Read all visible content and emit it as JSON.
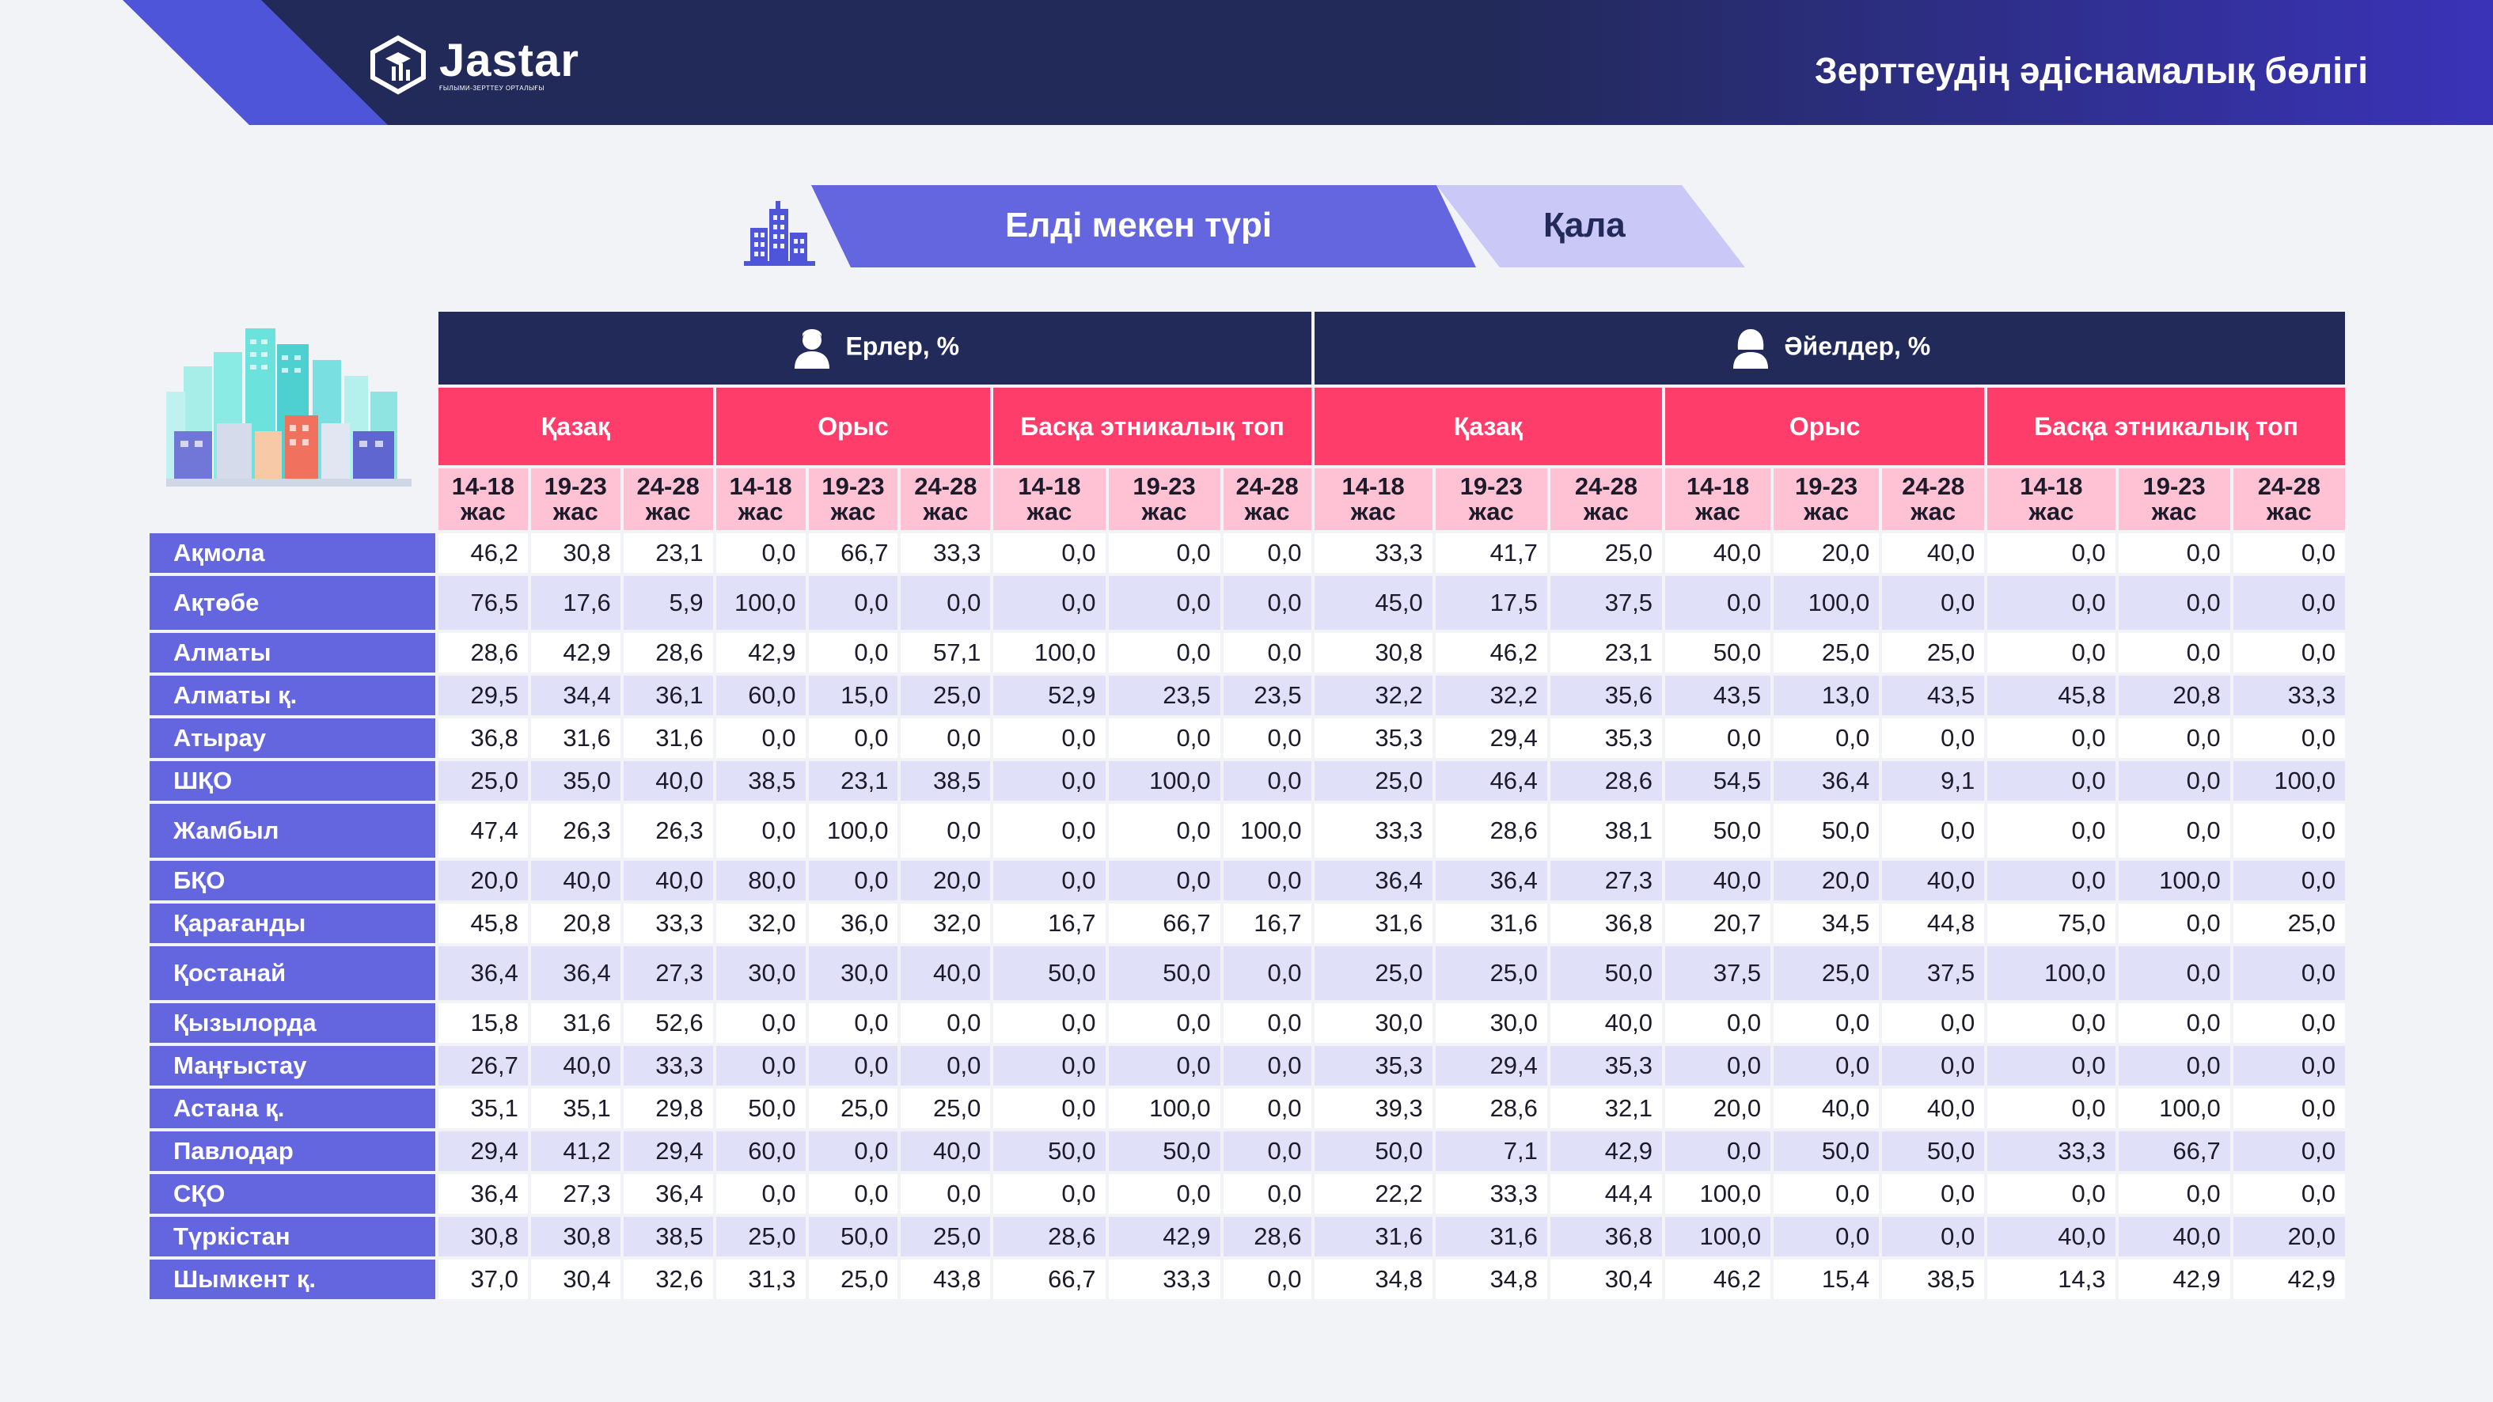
{
  "header": {
    "logo_name": "Jastar",
    "logo_sub": "ҒЫЛЫМИ-ЗЕРТТЕУ ОРТАЛЫҒЫ",
    "title": "Зерттеудің әдіснамалық бөлігі"
  },
  "banner": {
    "label": "Елді мекен түрі",
    "value": "Қала"
  },
  "table": {
    "genders": [
      "Ерлер, %",
      "Әйелдер, %"
    ],
    "groups": [
      "Қазақ",
      "Орыс",
      "Басқа этникалық топ",
      "Қазақ",
      "Орыс",
      "Басқа этникалық топ"
    ],
    "ages": [
      [
        "14-18",
        "жас"
      ],
      [
        "19-23",
        "жас"
      ],
      [
        "24-28",
        "жас"
      ],
      [
        "14-18",
        "жас"
      ],
      [
        "19-23",
        "жас"
      ],
      [
        "24-28",
        "жас"
      ],
      [
        "14-18",
        "жас"
      ],
      [
        "19-23",
        "жас"
      ],
      [
        "24-28",
        "жас"
      ],
      [
        "14-18",
        "жас"
      ],
      [
        "19-23",
        "жас"
      ],
      [
        "24-28",
        "жас"
      ],
      [
        "14-18",
        "жас"
      ],
      [
        "19-23",
        "жас"
      ],
      [
        "24-28",
        "жас"
      ],
      [
        "14-18",
        "жас"
      ],
      [
        "19-23",
        "жас"
      ],
      [
        "24-28",
        "жас"
      ]
    ],
    "rows": [
      {
        "region": "Ақмола",
        "values": [
          "46,2",
          "30,8",
          "23,1",
          "0,0",
          "66,7",
          "33,3",
          "0,0",
          "0,0",
          "0,0",
          "33,3",
          "41,7",
          "25,0",
          "40,0",
          "20,0",
          "40,0",
          "0,0",
          "0,0",
          "0,0"
        ]
      },
      {
        "region": "Ақтөбе",
        "values": [
          "76,5",
          "17,6",
          "5,9",
          "100,0",
          "0,0",
          "0,0",
          "0,0",
          "0,0",
          "0,0",
          "45,0",
          "17,5",
          "37,5",
          "0,0",
          "100,0",
          "0,0",
          "0,0",
          "0,0",
          "0,0"
        ]
      },
      {
        "region": "Алматы",
        "values": [
          "28,6",
          "42,9",
          "28,6",
          "42,9",
          "0,0",
          "57,1",
          "100,0",
          "0,0",
          "0,0",
          "30,8",
          "46,2",
          "23,1",
          "50,0",
          "25,0",
          "25,0",
          "0,0",
          "0,0",
          "0,0"
        ]
      },
      {
        "region": "Алматы қ.",
        "values": [
          "29,5",
          "34,4",
          "36,1",
          "60,0",
          "15,0",
          "25,0",
          "52,9",
          "23,5",
          "23,5",
          "32,2",
          "32,2",
          "35,6",
          "43,5",
          "13,0",
          "43,5",
          "45,8",
          "20,8",
          "33,3"
        ]
      },
      {
        "region": "Атырау",
        "values": [
          "36,8",
          "31,6",
          "31,6",
          "0,0",
          "0,0",
          "0,0",
          "0,0",
          "0,0",
          "0,0",
          "35,3",
          "29,4",
          "35,3",
          "0,0",
          "0,0",
          "0,0",
          "0,0",
          "0,0",
          "0,0"
        ]
      },
      {
        "region": "ШҚО",
        "values": [
          "25,0",
          "35,0",
          "40,0",
          "38,5",
          "23,1",
          "38,5",
          "0,0",
          "100,0",
          "0,0",
          "25,0",
          "46,4",
          "28,6",
          "54,5",
          "36,4",
          "9,1",
          "0,0",
          "0,0",
          "100,0"
        ]
      },
      {
        "region": "Жамбыл",
        "values": [
          "47,4",
          "26,3",
          "26,3",
          "0,0",
          "100,0",
          "0,0",
          "0,0",
          "0,0",
          "100,0",
          "33,3",
          "28,6",
          "38,1",
          "50,0",
          "50,0",
          "0,0",
          "0,0",
          "0,0",
          "0,0"
        ]
      },
      {
        "region": "БҚО",
        "values": [
          "20,0",
          "40,0",
          "40,0",
          "80,0",
          "0,0",
          "20,0",
          "0,0",
          "0,0",
          "0,0",
          "36,4",
          "36,4",
          "27,3",
          "40,0",
          "20,0",
          "40,0",
          "0,0",
          "100,0",
          "0,0"
        ]
      },
      {
        "region": "Қарағанды",
        "values": [
          "45,8",
          "20,8",
          "33,3",
          "32,0",
          "36,0",
          "32,0",
          "16,7",
          "66,7",
          "16,7",
          "31,6",
          "31,6",
          "36,8",
          "20,7",
          "34,5",
          "44,8",
          "75,0",
          "0,0",
          "25,0"
        ]
      },
      {
        "region": "Қостанай",
        "values": [
          "36,4",
          "36,4",
          "27,3",
          "30,0",
          "30,0",
          "40,0",
          "50,0",
          "50,0",
          "0,0",
          "25,0",
          "25,0",
          "50,0",
          "37,5",
          "25,0",
          "37,5",
          "100,0",
          "0,0",
          "0,0"
        ]
      },
      {
        "region": "Қызылорда",
        "values": [
          "15,8",
          "31,6",
          "52,6",
          "0,0",
          "0,0",
          "0,0",
          "0,0",
          "0,0",
          "0,0",
          "30,0",
          "30,0",
          "40,0",
          "0,0",
          "0,0",
          "0,0",
          "0,0",
          "0,0",
          "0,0"
        ]
      },
      {
        "region": "Маңғыстау",
        "values": [
          "26,7",
          "40,0",
          "33,3",
          "0,0",
          "0,0",
          "0,0",
          "0,0",
          "0,0",
          "0,0",
          "35,3",
          "29,4",
          "35,3",
          "0,0",
          "0,0",
          "0,0",
          "0,0",
          "0,0",
          "0,0"
        ]
      },
      {
        "region": "Астана қ.",
        "values": [
          "35,1",
          "35,1",
          "29,8",
          "50,0",
          "25,0",
          "25,0",
          "0,0",
          "100,0",
          "0,0",
          "39,3",
          "28,6",
          "32,1",
          "20,0",
          "40,0",
          "40,0",
          "0,0",
          "100,0",
          "0,0"
        ]
      },
      {
        "region": "Павлодар",
        "values": [
          "29,4",
          "41,2",
          "29,4",
          "60,0",
          "0,0",
          "40,0",
          "50,0",
          "50,0",
          "0,0",
          "50,0",
          "7,1",
          "42,9",
          "0,0",
          "50,0",
          "50,0",
          "33,3",
          "66,7",
          "0,0"
        ]
      },
      {
        "region": "СҚО",
        "values": [
          "36,4",
          "27,3",
          "36,4",
          "0,0",
          "0,0",
          "0,0",
          "0,0",
          "0,0",
          "0,0",
          "22,2",
          "33,3",
          "44,4",
          "100,0",
          "0,0",
          "0,0",
          "0,0",
          "0,0",
          "0,0"
        ]
      },
      {
        "region": "Түркістан",
        "values": [
          "30,8",
          "30,8",
          "38,5",
          "25,0",
          "50,0",
          "25,0",
          "28,6",
          "42,9",
          "28,6",
          "31,6",
          "31,6",
          "36,8",
          "100,0",
          "0,0",
          "0,0",
          "40,0",
          "40,0",
          "20,0"
        ]
      },
      {
        "region": "Шымкент қ.",
        "values": [
          "37,0",
          "30,4",
          "32,6",
          "31,3",
          "25,0",
          "43,8",
          "66,7",
          "33,3",
          "0,0",
          "34,8",
          "34,8",
          "30,4",
          "46,2",
          "15,4",
          "38,5",
          "14,3",
          "42,9",
          "42,9"
        ]
      }
    ]
  },
  "colors": {
    "header_bg": "#222a5a",
    "accent": "#6466e0",
    "group_header": "#ff3d6a",
    "age_header": "#ffc2d4",
    "row_alt": "#e0e1f8"
  },
  "icons": {
    "logo": "jastar-logo-icon",
    "settlement": "city-buildings-icon",
    "male": "male-person-icon",
    "female": "female-person-icon",
    "illustration": "city-skyline-illustration"
  }
}
